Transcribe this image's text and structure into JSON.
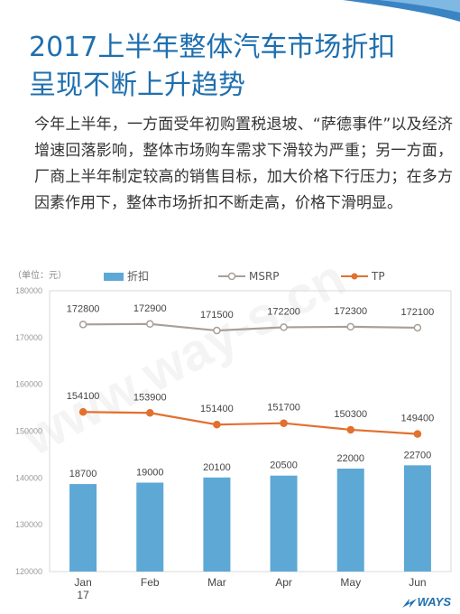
{
  "title_lines": [
    "2017上半年整体汽车市场折扣",
    "呈现不断上升趋势"
  ],
  "body_text": "今年上半年，一方面受年初购置税退坡、“萨德事件”以及经济增速回落影响，整体市场购车需求下滑较为严重；另一方面，厂商上半年制定较高的销售目标，加大价格下行压力；在多方因素作用下，整体市场折扣不断走高，价格下滑明显。",
  "unit_label": "（单位：元）",
  "logo_text": "WAYS",
  "watermark_text": "www.way-s.cn",
  "colors": {
    "accent": "#1f6fae",
    "bar": "#5ea8d6",
    "msrp": "#a89f98",
    "tp": "#e2702f"
  },
  "chart_data": {
    "type": "bar",
    "categories": [
      "Jan\n17",
      "Feb",
      "Mar",
      "Apr",
      "May",
      "Jun"
    ],
    "series": [
      {
        "name": "折扣",
        "kind": "bar",
        "values": [
          18700,
          19000,
          20100,
          20500,
          22000,
          22700
        ]
      },
      {
        "name": "MSRP",
        "kind": "line",
        "values": [
          172800,
          172900,
          171500,
          172200,
          172300,
          172100
        ]
      },
      {
        "name": "TP",
        "kind": "line",
        "values": [
          154100,
          153900,
          151400,
          151700,
          150300,
          149400
        ]
      }
    ],
    "bar_display_base": 120000,
    "ylim": [
      120000,
      180000
    ],
    "yticks": [
      120000,
      130000,
      140000,
      150000,
      160000,
      170000,
      180000
    ],
    "legend_position": "top",
    "grid": false
  }
}
